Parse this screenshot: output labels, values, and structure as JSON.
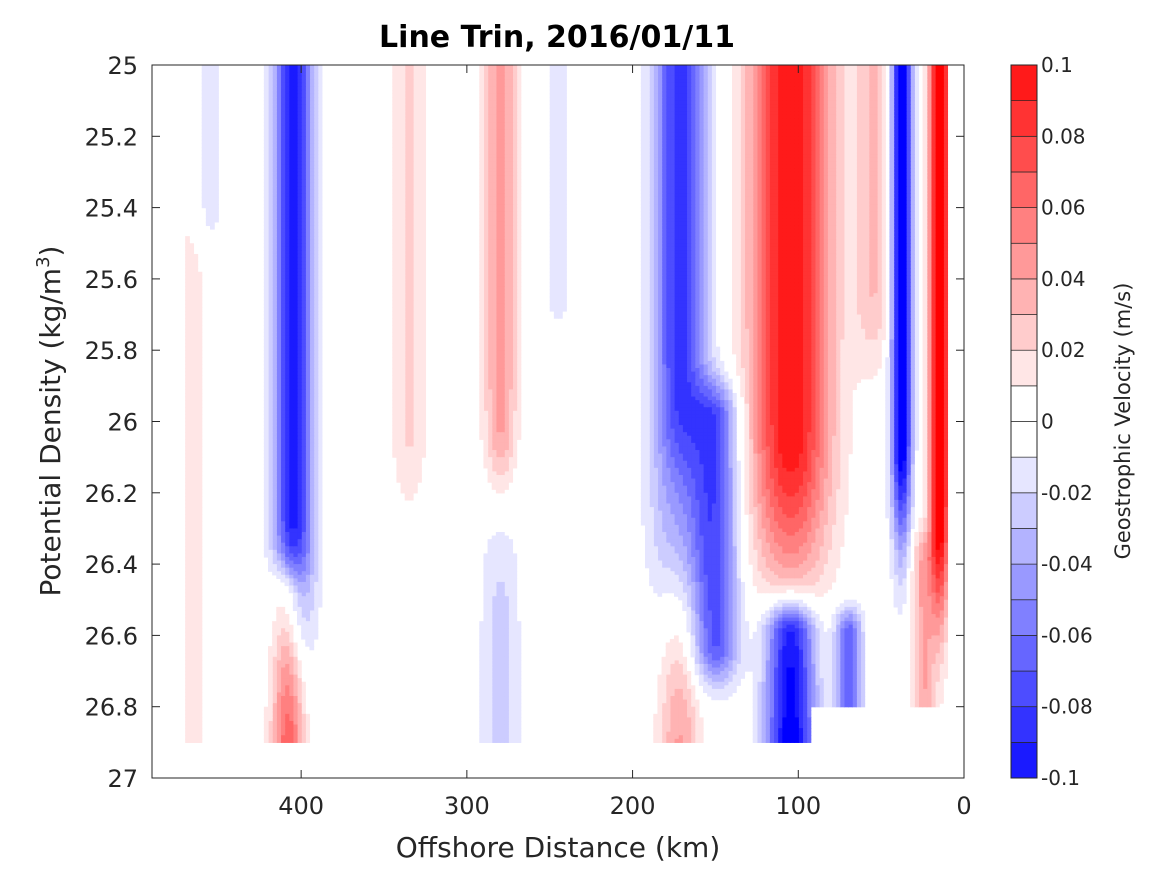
{
  "chart_data": {
    "type": "contour",
    "title": "Line Trin, 2016/01/11",
    "xlabel": "Offshore Distance (km)",
    "ylabel": "Potential Density (kg/m3)",
    "ylabel_base": "Potential Density (kg/m",
    "ylabel_sup": "3",
    "ylabel_tail": ")",
    "xlim": [
      490,
      0
    ],
    "ylim": [
      25,
      27
    ],
    "x_reversed": true,
    "y_reversed": true,
    "xticks": [
      400,
      300,
      200,
      100,
      0
    ],
    "xtick_labels": [
      "400",
      "300",
      "200",
      "100",
      "0"
    ],
    "yticks": [
      25,
      25.2,
      25.4,
      25.6,
      25.8,
      26,
      26.2,
      26.4,
      26.6,
      26.8,
      27
    ],
    "ytick_labels": [
      "25",
      "25.2",
      "25.4",
      "25.6",
      "25.8",
      "26",
      "26.2",
      "26.4",
      "26.6",
      "26.8",
      "27"
    ],
    "colorbar": {
      "label": "Geostrophic Velocity (m/s)",
      "lim": [
        -0.1,
        0.1
      ],
      "levels": [
        -0.1,
        -0.09,
        -0.08,
        -0.07,
        -0.06,
        -0.05,
        -0.04,
        -0.03,
        -0.02,
        -0.01,
        0,
        0.01,
        0.02,
        0.03,
        0.04,
        0.05,
        0.06,
        0.07,
        0.08,
        0.09,
        0.1
      ],
      "ticks": [
        0.1,
        0.08,
        0.06,
        0.04,
        0.02,
        0,
        -0.02,
        -0.04,
        -0.06,
        -0.08,
        -0.1
      ],
      "tick_labels": [
        "0.1",
        "0.08",
        "0.06",
        "0.04",
        "0.02",
        "0",
        "-0.02",
        "-0.04",
        "-0.06",
        "-0.08",
        "-0.1"
      ],
      "colors": [
        "#0000ff",
        "#1a1aff",
        "#3333ff",
        "#4d4dff",
        "#6666ff",
        "#8080ff",
        "#9999ff",
        "#b3b3ff",
        "#ccccff",
        "#e6e6ff",
        "#ffffff",
        "#ffffff",
        "#ffe6e6",
        "#ffcccc",
        "#ffb3b3",
        "#ff9999",
        "#ff8080",
        "#ff6666",
        "#ff4d4d",
        "#ff3333",
        "#ff1a1a",
        "#ff0000"
      ]
    },
    "data_range": {
      "x": [
        10,
        470
      ],
      "y": [
        25,
        26.9
      ]
    },
    "features": [
      {
        "x": 405,
        "sigma_x": 12,
        "y_top": 24.8,
        "y_bottom": 26.35,
        "sigma_y": 0.35,
        "amp": -0.095
      },
      {
        "x": 455,
        "sigma_x": 7,
        "y_top": 24.8,
        "y_bottom": 25.4,
        "sigma_y": 0.1,
        "amp": -0.018
      },
      {
        "x": 408,
        "sigma_x": 10,
        "y_top": 26.5,
        "y_bottom": 27.0,
        "sigma_y": 0.12,
        "amp": 0.075
      },
      {
        "x": 470,
        "sigma_x": 14,
        "y_top": 25.7,
        "y_bottom": 27.0,
        "sigma_y": 0.3,
        "amp": 0.018
      },
      {
        "x": 335,
        "sigma_x": 11,
        "y_top": 24.8,
        "y_bottom": 26.0,
        "sigma_y": 0.25,
        "amp": 0.022
      },
      {
        "x": 280,
        "sigma_x": 10,
        "y_top": 24.8,
        "y_bottom": 26.0,
        "sigma_y": 0.3,
        "amp": 0.045
      },
      {
        "x": 245,
        "sigma_x": 8,
        "y_top": 24.8,
        "y_bottom": 25.6,
        "sigma_y": 0.15,
        "amp": -0.018
      },
      {
        "x": 280,
        "sigma_x": 12,
        "y_top": 26.3,
        "y_bottom": 27.0,
        "sigma_y": 0.2,
        "amp": -0.025
      },
      {
        "x": 172,
        "sigma_x": 16,
        "y_top": 24.8,
        "y_bottom": 26.2,
        "sigma_y": 0.4,
        "amp": -0.085
      },
      {
        "x": 150,
        "sigma_x": 14,
        "y_top": 26.0,
        "y_bottom": 26.62,
        "sigma_y": 0.12,
        "amp": -0.07
      },
      {
        "x": 172,
        "sigma_x": 13,
        "y_top": 26.3,
        "y_bottom": 27.0,
        "sigma_y": 0.25,
        "amp": 0.045
      },
      {
        "x": 105,
        "sigma_x": 24,
        "y_top": 24.8,
        "y_bottom": 26.0,
        "sigma_y": 0.45,
        "amp": 0.1
      },
      {
        "x": 55,
        "sigma_x": 12,
        "y_top": 24.8,
        "y_bottom": 25.6,
        "sigma_y": 0.25,
        "amp": 0.03
      },
      {
        "x": 105,
        "sigma_x": 15,
        "y_top": 26.6,
        "y_bottom": 27.0,
        "sigma_y": 0.1,
        "amp": -0.11
      },
      {
        "x": 70,
        "sigma_x": 8,
        "y_top": 26.6,
        "y_bottom": 26.9,
        "sigma_y": 0.08,
        "amp": -0.07
      },
      {
        "x": 38,
        "sigma_x": 6,
        "y_top": 24.8,
        "y_bottom": 26.0,
        "sigma_y": 0.35,
        "amp": -0.12
      },
      {
        "x": 15,
        "sigma_x": 6,
        "y_top": 24.8,
        "y_bottom": 26.2,
        "sigma_y": 0.35,
        "amp": 0.12
      },
      {
        "x": 25,
        "sigma_x": 7,
        "y_top": 26.4,
        "y_bottom": 26.85,
        "sigma_y": 0.1,
        "amp": 0.04
      }
    ],
    "nodata_regions": [
      {
        "x_range": [
          0,
          92
        ],
        "y_top": 26.8
      },
      {
        "x_range": [
          0,
          10
        ],
        "y_top": 25.5
      }
    ]
  }
}
